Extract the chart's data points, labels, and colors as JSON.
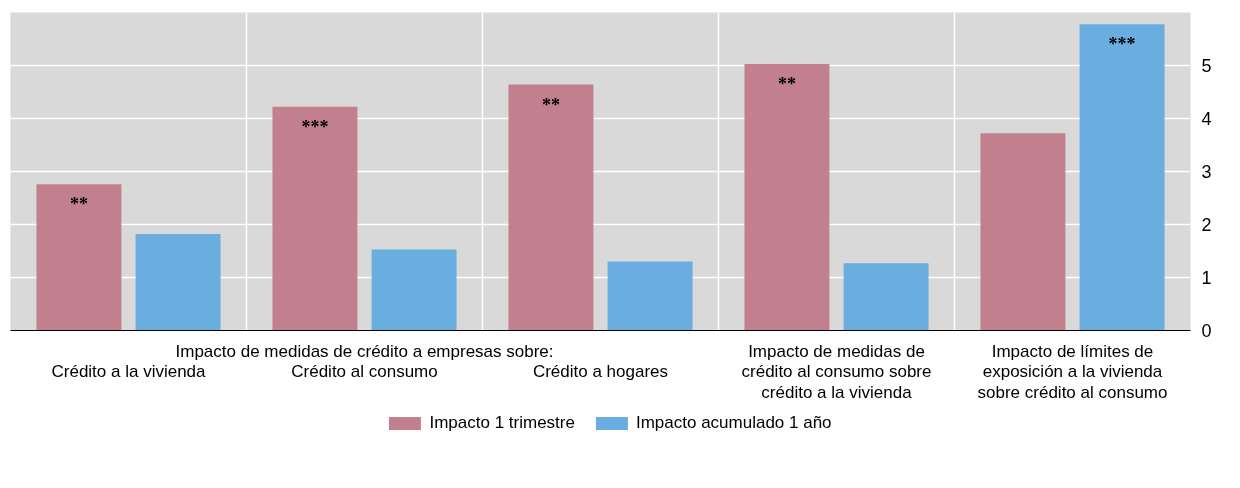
{
  "chart_data": {
    "type": "bar",
    "categories": [
      "Crédito a la vivienda",
      "Crédito al consumo",
      "Crédito a hogares",
      "Impacto de medidas de crédito al consumo sobre crédito a la vivienda",
      "Impacto de límites de exposición a la vivienda sobre crédito al consumo"
    ],
    "annotations": [
      "Impacto de medidas de crédito a empresas sobre:"
    ],
    "series": [
      {
        "name": "Impacto 1 trimestre",
        "color": "#c2808f",
        "values": [
          2.76,
          4.22,
          4.64,
          5.03,
          3.72
        ],
        "value_labels": [
          "**",
          "***",
          "**",
          "**",
          null
        ]
      },
      {
        "name": "Impacto acumulado 1 año",
        "color": "#6aaee0",
        "values": [
          1.82,
          1.53,
          1.3,
          1.27,
          5.78
        ],
        "value_labels": [
          null,
          null,
          null,
          null,
          "***"
        ]
      }
    ],
    "ylim": [
      0,
      6
    ],
    "yticks": [
      0,
      1,
      2,
      3,
      4,
      5
    ],
    "grid": true,
    "legend": "bottom"
  }
}
